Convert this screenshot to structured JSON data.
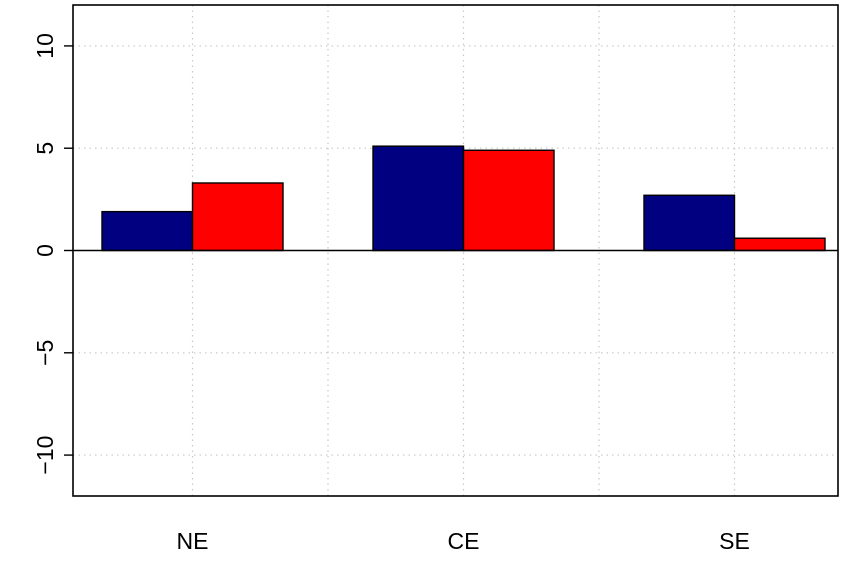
{
  "chart_data": {
    "type": "bar",
    "categories": [
      "NE",
      "CE",
      "SE"
    ],
    "series": [
      {
        "values": [
          1.9,
          5.1,
          2.7
        ],
        "color": "#000080"
      },
      {
        "values": [
          3.3,
          4.9,
          0.6
        ],
        "color": "#ff0000"
      }
    ],
    "ylim": [
      -12,
      12
    ],
    "yticks": [
      -10,
      -5,
      0,
      5,
      10
    ],
    "ytick_labels": [
      "−10",
      "−5",
      "0",
      "5",
      "10"
    ],
    "grid": true,
    "legend": "none",
    "title": "",
    "xlabel": "",
    "ylabel": ""
  }
}
